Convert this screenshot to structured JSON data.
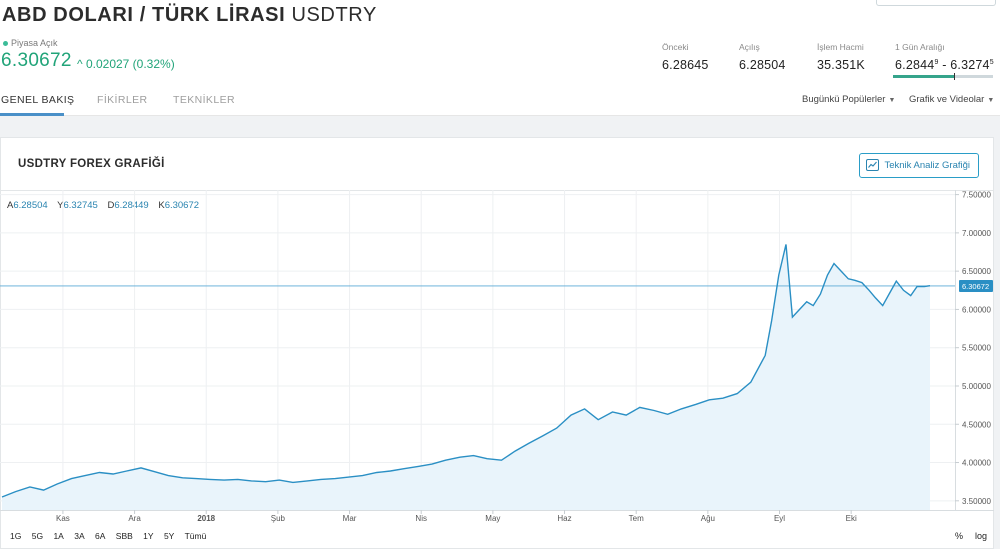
{
  "header": {
    "title": "ABD DOLARI / TÜRK LİRASI",
    "symbol": "USDTRY",
    "market_status": "Piyasa Açık",
    "price": "6.30672",
    "change": "^ 0.02027 (0.32%)"
  },
  "stats": {
    "prev_label": "Önceki",
    "prev_value": "6.28645",
    "open_label": "Açılış",
    "open_value": "6.28504",
    "volume_label": "İşlem Hacmi",
    "volume_value": "35.351K",
    "range_label": "1 Gün Aralığı",
    "range_low_main": "6.2844",
    "range_low_sup": "9",
    "range_sep": " - ",
    "range_high_main": "6.3274",
    "range_high_sup": "5",
    "range_position": 0.61
  },
  "tabs": [
    "GENEL BAKIŞ",
    "FİKİRLER",
    "TEKNİKLER"
  ],
  "dropdowns": [
    "Bugünkü Popülerler",
    "Grafik ve Videolar"
  ],
  "chart_card": {
    "title": "USDTRY FOREX GRAFİĞİ",
    "button_label": "Teknik Analiz Grafiği",
    "ohlc": {
      "open_label": "A",
      "open": "6.28504",
      "high_label": "Y",
      "high": "6.32745",
      "low_label": "D",
      "low": "6.28449",
      "close_label": "K",
      "close": "6.30672"
    }
  },
  "timeframes": [
    "1G",
    "5G",
    "1A",
    "3A",
    "6A",
    "SBB",
    "1Y",
    "5Y",
    "Tümü"
  ],
  "scale_buttons": {
    "percent": "%",
    "log": "log"
  },
  "colors": {
    "up": "#21a479",
    "line": "#2a8fc4",
    "accent": "#4a90c8"
  },
  "chart_data": {
    "type": "area",
    "y_ticks": [
      "7.50000",
      "7.00000",
      "6.50000",
      "6.00000",
      "5.50000",
      "5.00000",
      "4.50000",
      "4.00000",
      "3.50000"
    ],
    "x_ticks": [
      "Kas",
      "Ara",
      "2018",
      "Şub",
      "Mar",
      "Nis",
      "May",
      "Haz",
      "Tem",
      "Ağu",
      "Eyl",
      "Eki"
    ],
    "last_value_label": "6.30672",
    "last_value": 6.30672,
    "ylim": [
      3.38,
      7.56
    ],
    "grid": true,
    "x_range": [
      0,
      12.95
    ],
    "x": [
      0.0,
      0.19,
      0.39,
      0.58,
      0.77,
      0.97,
      1.16,
      1.36,
      1.55,
      1.74,
      1.94,
      2.13,
      2.32,
      2.52,
      2.71,
      2.9,
      3.1,
      3.29,
      3.48,
      3.68,
      3.87,
      4.06,
      4.26,
      4.45,
      4.65,
      4.84,
      5.03,
      5.23,
      5.42,
      5.61,
      5.81,
      6.0,
      6.19,
      6.39,
      6.58,
      6.77,
      6.97,
      7.16,
      7.35,
      7.55,
      7.74,
      7.94,
      8.13,
      8.32,
      8.52,
      8.71,
      8.9,
      9.1,
      9.29,
      9.48,
      9.68,
      9.87,
      10.06,
      10.26,
      10.45,
      10.65,
      10.74,
      10.84,
      10.94,
      11.03,
      11.13,
      11.23,
      11.32,
      11.42,
      11.52,
      11.61,
      11.71,
      11.81,
      11.9,
      12.0,
      12.1,
      12.19,
      12.29,
      12.39,
      12.48,
      12.58,
      12.68,
      12.77,
      12.87,
      12.95
    ],
    "y": [
      3.55,
      3.62,
      3.68,
      3.64,
      3.72,
      3.79,
      3.83,
      3.87,
      3.85,
      3.89,
      3.93,
      3.88,
      3.83,
      3.8,
      3.79,
      3.78,
      3.77,
      3.78,
      3.76,
      3.75,
      3.77,
      3.74,
      3.76,
      3.78,
      3.79,
      3.81,
      3.83,
      3.87,
      3.89,
      3.92,
      3.95,
      3.98,
      4.03,
      4.07,
      4.09,
      4.05,
      4.03,
      4.15,
      4.25,
      4.35,
      4.45,
      4.62,
      4.7,
      4.56,
      4.66,
      4.62,
      4.72,
      4.68,
      4.63,
      4.7,
      4.76,
      4.82,
      4.84,
      4.9,
      5.05,
      5.4,
      5.85,
      6.45,
      6.85,
      5.9,
      6.0,
      6.1,
      6.05,
      6.2,
      6.45,
      6.6,
      6.5,
      6.4,
      6.38,
      6.35,
      6.25,
      6.15,
      6.05,
      6.22,
      6.37,
      6.25,
      6.18,
      6.3,
      6.3,
      6.31
    ]
  }
}
